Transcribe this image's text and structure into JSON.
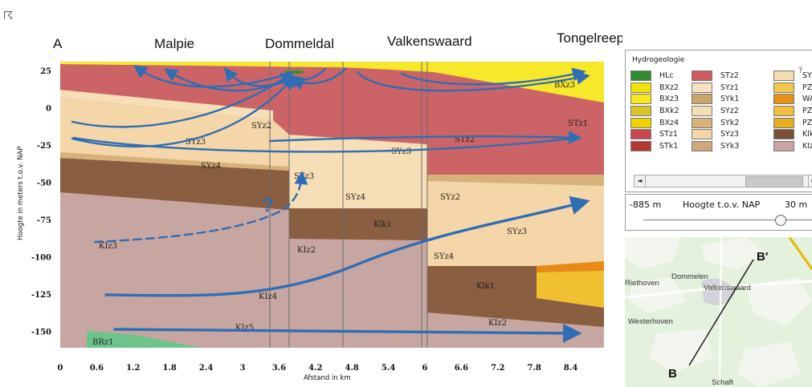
{
  "panel_letter": "A",
  "section_titles": [
    "Malpie",
    "Dommeldal",
    "Valkenswaard",
    "Tongelreep"
  ],
  "y_axis": {
    "label": "Hoogte in meters t.o.v. NAP",
    "ticks": [
      "25",
      "0",
      "-25",
      "-50",
      "-75",
      "-100",
      "-125",
      "-150"
    ]
  },
  "x_axis": {
    "label": "Afstand in km",
    "ticks": [
      "0",
      "0.6",
      "1.2",
      "1.8",
      "2.4",
      "3",
      "3.6",
      "4.2",
      "4.8",
      "5.4",
      "6",
      "6.6",
      "7.2",
      "7.8",
      "8.4"
    ]
  },
  "unit_labels": {
    "bxz3": "BXz3",
    "stz1": "STz1",
    "syz2_a": "SYz2",
    "syz3_a": "SYz3",
    "syz3_b": "SYz3",
    "stz2": "STz2",
    "syz4_a": "SYz4",
    "syz3_c": "SYz3",
    "syz4_b": "SYz4",
    "syz2_b": "SYz2",
    "klk1_a": "Klk1",
    "syz3_d": "SYz3",
    "klz3": "KIz3",
    "klz2_a": "KIz2",
    "syz4_c": "SYz4",
    "klk1_b": "Klk1",
    "klz4": "KIz4",
    "klz5": "KIz5",
    "klz2_b": "KIz2",
    "brz1": "BRz1"
  },
  "question_mark": "?",
  "legend": {
    "title": "Hydrogeologie",
    "help": "?",
    "col1": [
      {
        "code": "HLc",
        "color": "#2e8b2e"
      },
      {
        "code": "BXz2",
        "color": "#f2e200"
      },
      {
        "code": "BXz3",
        "color": "#f7e81e"
      },
      {
        "code": "BXk2",
        "color": "#d9c22a"
      },
      {
        "code": "BXz4",
        "color": "#f0d400"
      },
      {
        "code": "STz1",
        "color": "#c9474d"
      },
      {
        "code": "STk1",
        "color": "#b23a33"
      }
    ],
    "col2": [
      {
        "code": "STz2",
        "color": "#cc5a5f"
      },
      {
        "code": "SYz1",
        "color": "#f7e2c0"
      },
      {
        "code": "SYk1",
        "color": "#c9a56a"
      },
      {
        "code": "SYz2",
        "color": "#f6dfb6"
      },
      {
        "code": "SYk2",
        "color": "#d8b47a"
      },
      {
        "code": "SYz3",
        "color": "#f4d6a8"
      },
      {
        "code": "SYk3",
        "color": "#cfa97a"
      }
    ],
    "col3": [
      {
        "code": "SY:",
        "color": "#f7dcb0"
      },
      {
        "code": "PZ\\",
        "color": "#f0c84a"
      },
      {
        "code": "WA",
        "color": "#e89018"
      },
      {
        "code": "PZ\\",
        "color": "#f2c040"
      },
      {
        "code": "PZ\\",
        "color": "#e8b020"
      },
      {
        "code": "Klk",
        "color": "#7a5238"
      },
      {
        "code": "KIz",
        "color": "#c9a3a3"
      }
    ],
    "scroll_left": "◄",
    "scroll_right": "►"
  },
  "slider": {
    "min_label": "-885 m",
    "title": "Hoogte t.o.v. NAP",
    "max_label": "30 m",
    "level_fraction": 0.79
  },
  "map": {
    "places": [
      "Riethoven",
      "Dommelen",
      "Valkenswaard",
      "Westerhoven",
      "Schaft"
    ],
    "point_a": "B'",
    "point_b": "B"
  },
  "cursor_glyph": "☈",
  "colors": {
    "arrow": "#2f6db5",
    "stz": "#cc6467",
    "bxz": "#f7e82a",
    "syz3": "#f4d6a8",
    "syz2": "#f6dfb6",
    "syk": "#d6b27a",
    "klk": "#8a5e40",
    "klz": "#c7a6a2",
    "brz": "#6cc48a",
    "hlc": "#2e9a2e"
  }
}
